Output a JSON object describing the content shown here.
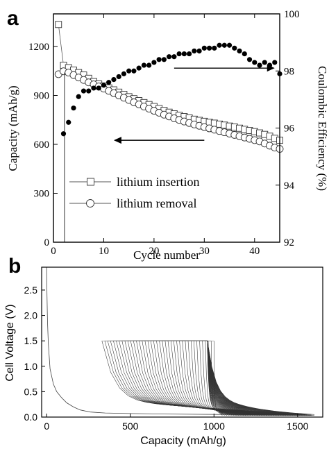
{
  "figure": {
    "panel_a_label": "a",
    "panel_b_label": "b"
  },
  "chart_data": [
    {
      "type": "scatter",
      "panel": "a",
      "xlabel": "Cycle number",
      "ylabel": "Capacity (mAh/g)",
      "y2label": "Coulombic Efficiency (%)",
      "xlim": [
        0,
        45
      ],
      "ylim": [
        0,
        1400
      ],
      "y2lim": [
        92,
        100
      ],
      "xticks": [
        0,
        10,
        20,
        30,
        40
      ],
      "yticks": [
        0,
        300,
        600,
        900,
        1200
      ],
      "y2ticks": [
        92,
        94,
        96,
        98,
        100
      ],
      "legend_position": "bottom-left",
      "series": [
        {
          "name": "lithium insertion",
          "marker": "square-open",
          "axis": "left",
          "x": [
            1,
            2,
            3,
            4,
            5,
            6,
            7,
            8,
            9,
            10,
            11,
            12,
            13,
            14,
            15,
            16,
            17,
            18,
            19,
            20,
            21,
            22,
            23,
            24,
            25,
            26,
            27,
            28,
            29,
            30,
            31,
            32,
            33,
            34,
            35,
            36,
            37,
            38,
            39,
            40,
            41,
            42,
            43,
            44,
            45
          ],
          "values": [
            1335,
            1085,
            1070,
            1055,
            1040,
            1025,
            1005,
            985,
            970,
            958,
            946,
            934,
            920,
            906,
            892,
            880,
            868,
            856,
            844,
            832,
            820,
            808,
            797,
            787,
            778,
            770,
            762,
            754,
            747,
            741,
            735,
            730,
            724,
            718,
            712,
            706,
            699,
            692,
            685,
            678,
            670,
            661,
            650,
            637,
            625
          ]
        },
        {
          "name": "lithium removal",
          "marker": "circle-open",
          "axis": "left",
          "x": [
            1,
            2,
            3,
            4,
            5,
            6,
            7,
            8,
            9,
            10,
            11,
            12,
            13,
            14,
            15,
            16,
            17,
            18,
            19,
            20,
            21,
            22,
            23,
            24,
            25,
            26,
            27,
            28,
            29,
            30,
            31,
            32,
            33,
            34,
            35,
            36,
            37,
            38,
            39,
            40,
            41,
            42,
            43,
            44,
            45
          ],
          "values": [
            1030,
            1048,
            1040,
            1025,
            1010,
            995,
            980,
            968,
            955,
            942,
            928,
            914,
            900,
            886,
            872,
            858,
            845,
            832,
            819,
            806,
            794,
            782,
            771,
            760,
            750,
            740,
            731,
            722,
            714,
            706,
            698,
            690,
            682,
            674,
            666,
            658,
            650,
            642,
            634,
            626,
            618,
            605,
            592,
            580,
            572
          ]
        },
        {
          "name": "coulombic efficiency",
          "marker": "circle-filled",
          "axis": "right",
          "x": [
            2,
            3,
            4,
            5,
            6,
            7,
            8,
            9,
            10,
            11,
            12,
            13,
            14,
            15,
            16,
            17,
            18,
            19,
            20,
            21,
            22,
            23,
            24,
            25,
            26,
            27,
            28,
            29,
            30,
            31,
            32,
            33,
            34,
            35,
            36,
            37,
            38,
            39,
            40,
            41,
            42,
            43,
            44,
            45
          ],
          "values": [
            95.8,
            96.2,
            96.7,
            97.1,
            97.3,
            97.3,
            97.4,
            97.4,
            97.5,
            97.6,
            97.7,
            97.8,
            97.9,
            98.0,
            98.0,
            98.1,
            98.2,
            98.2,
            98.3,
            98.4,
            98.4,
            98.5,
            98.5,
            98.6,
            98.6,
            98.6,
            98.7,
            98.7,
            98.8,
            98.8,
            98.8,
            98.9,
            98.9,
            98.9,
            98.8,
            98.7,
            98.6,
            98.4,
            98.3,
            98.2,
            98.3,
            98.2,
            98.3,
            97.9
          ]
        }
      ],
      "arrows": [
        {
          "direction": "right",
          "from": [
            24,
            98.1
          ],
          "to": [
            44,
            98.1
          ]
        },
        {
          "direction": "left",
          "from": [
            30,
            625
          ],
          "to": [
            12,
            625
          ]
        }
      ]
    },
    {
      "type": "line",
      "panel": "b",
      "xlabel": "Capacity (mAh/g)",
      "ylabel": "Cell Voltage (V)",
      "xlim": [
        -30,
        1650
      ],
      "ylim": [
        0,
        2.95
      ],
      "xticks": [
        0,
        500,
        1000,
        1500
      ],
      "yticks": [
        0.0,
        0.5,
        1.0,
        1.5,
        2.0,
        2.5
      ],
      "ytick_labels": [
        "0.0",
        "0.5",
        "1.0",
        "1.5",
        "2.0",
        "2.5"
      ],
      "first_discharge_curve": {
        "x": [
          0,
          2,
          5,
          10,
          20,
          40,
          60,
          90,
          120,
          160,
          200,
          260,
          350,
          500,
          700,
          900,
          1100,
          1300,
          1500,
          1580
        ],
        "y": [
          2.95,
          2.4,
          1.9,
          1.45,
          0.95,
          0.65,
          0.5,
          0.38,
          0.28,
          0.2,
          0.14,
          0.1,
          0.08,
          0.07,
          0.06,
          0.055,
          0.05,
          0.045,
          0.04,
          0.04
        ]
      },
      "cycle_curves": {
        "count": 40,
        "charge_cutoff_V": 1.5,
        "charge_start_capacity": [
          330,
          1000
        ],
        "charge_end_capacity": [
          960,
          960
        ],
        "discharge_end_capacity": [
          1600,
          1050
        ]
      }
    }
  ]
}
